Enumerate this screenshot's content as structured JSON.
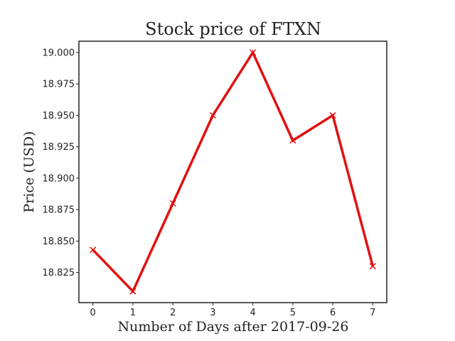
{
  "chart_data": {
    "type": "line",
    "title": "Stock price of FTXN",
    "xlabel": "Number of Days after 2017-09-26",
    "ylabel": "Price (USD)",
    "x": [
      0,
      1,
      2,
      3,
      4,
      5,
      6,
      7
    ],
    "series": [
      {
        "values": [
          18.843,
          18.81,
          18.88,
          18.95,
          19.0,
          18.93,
          18.95,
          18.83
        ]
      }
    ],
    "xlim": [
      -0.35,
      7.35
    ],
    "ylim": [
      18.801,
      19.009
    ],
    "xticks": [
      "0",
      "1",
      "2",
      "3",
      "4",
      "5",
      "6",
      "7"
    ],
    "yticks": [
      "18.825",
      "18.850",
      "18.875",
      "18.900",
      "18.925",
      "18.950",
      "18.975",
      "19.000"
    ],
    "marker": "x",
    "grid": false,
    "colors": {
      "line": "#e31010",
      "axes": "#222222"
    }
  }
}
